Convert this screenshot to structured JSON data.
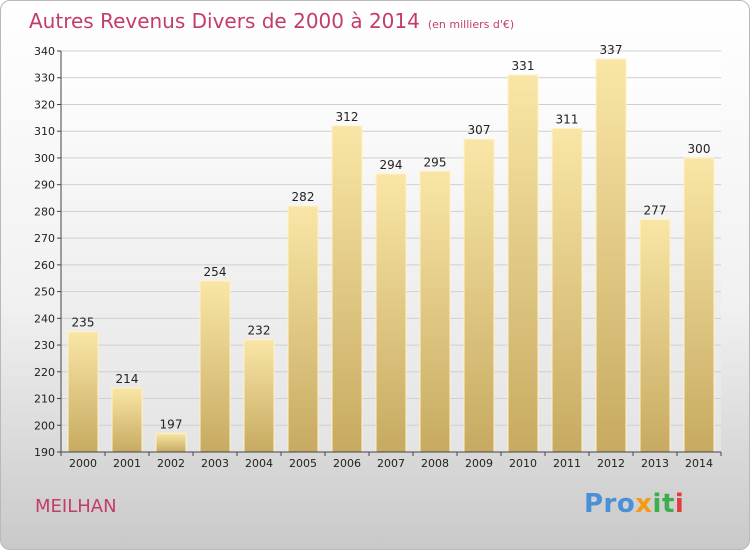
{
  "title": "Autres Revenus Divers de 2000 à 2014",
  "unit": "(en milliers d'€)",
  "commune": "MEILHAN",
  "logo": {
    "p1": "Pro",
    "p2": "x",
    "p3": "it",
    "p4": "i"
  },
  "colors": {
    "title": "#c43c69",
    "bar_light": "#f7e2a0",
    "bar_dark": "#c9ac63",
    "bar_edge": "#fff6cc"
  },
  "chart_data": {
    "type": "bar",
    "categories": [
      "2000",
      "2001",
      "2002",
      "2003",
      "2004",
      "2005",
      "2006",
      "2007",
      "2008",
      "2009",
      "2010",
      "2011",
      "2012",
      "2013",
      "2014"
    ],
    "values": [
      235,
      214,
      197,
      254,
      232,
      282,
      312,
      294,
      295,
      307,
      331,
      311,
      337,
      277,
      300
    ],
    "title": "Autres Revenus Divers de 2000 à 2014",
    "ylim": [
      190,
      340
    ],
    "yticks": [
      190,
      200,
      210,
      220,
      230,
      240,
      250,
      260,
      270,
      280,
      290,
      300,
      310,
      320,
      330,
      340
    ],
    "grid": true
  }
}
